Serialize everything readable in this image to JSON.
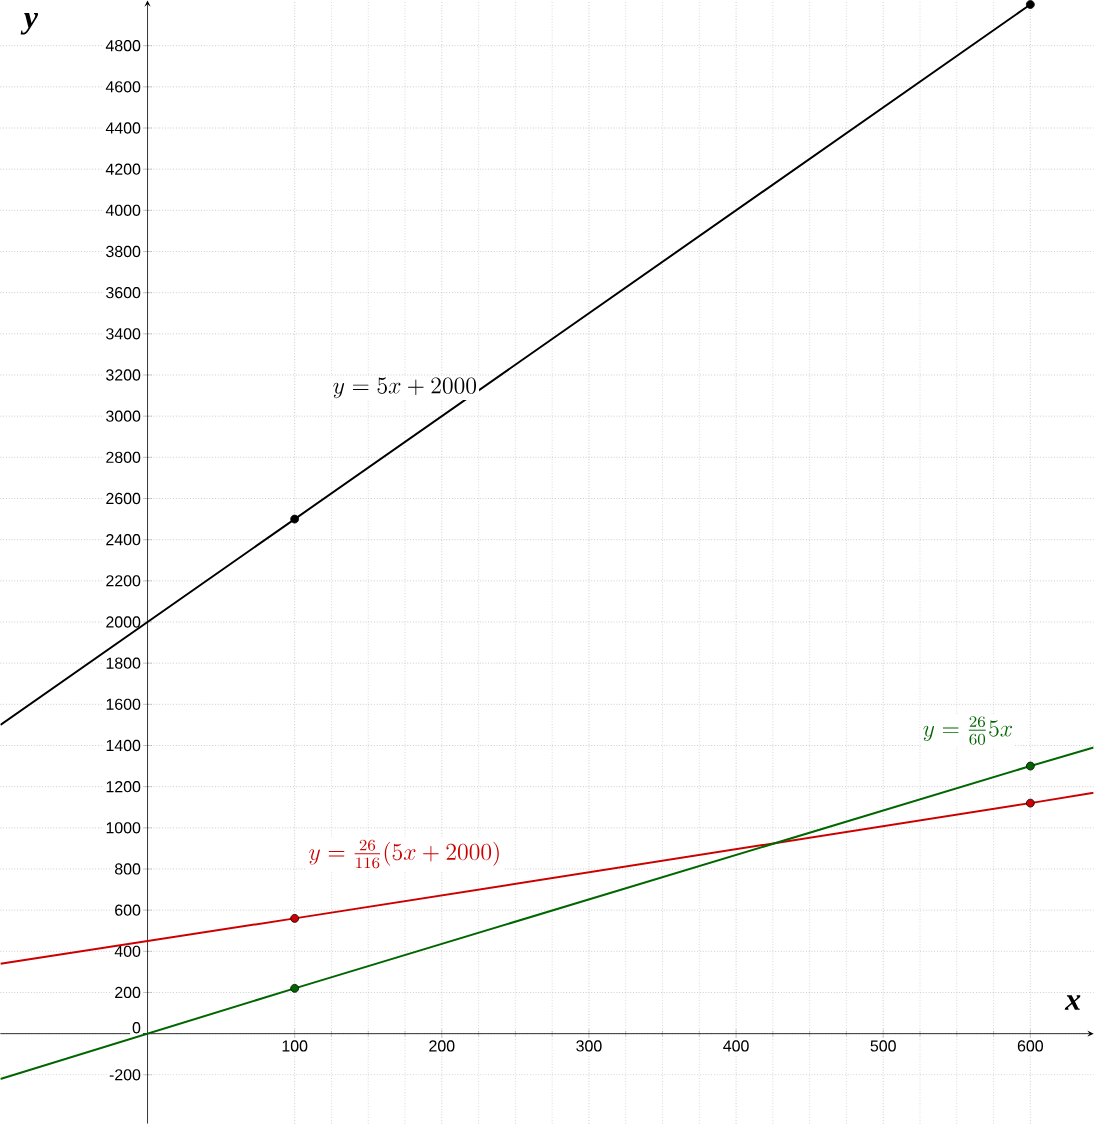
{
  "chart_data": {
    "type": "line",
    "xlabel": "x",
    "ylabel": "y",
    "xlim": [
      -100,
      643
    ],
    "ylim": [
      -437,
      5020
    ],
    "xticks": [
      100,
      200,
      300,
      400,
      500,
      600
    ],
    "yticks": [
      -200,
      0,
      200,
      400,
      600,
      800,
      1000,
      1200,
      1400,
      1600,
      1800,
      2000,
      2200,
      2400,
      2600,
      2800,
      3000,
      3200,
      3400,
      3600,
      3800,
      4000,
      4200,
      4400,
      4600,
      4800
    ],
    "grid": true,
    "line_style": "solid",
    "series": [
      {
        "color": "#000000",
        "x": [
          -100,
          100,
          600
        ],
        "values": [
          1500,
          2500,
          5000
        ]
      },
      {
        "color": "#cc0000",
        "x": [
          -100,
          100,
          600,
          643
        ],
        "values": [
          340,
          560,
          1120,
          1170
        ]
      },
      {
        "color": "#006600",
        "x": [
          -100,
          100,
          600,
          643
        ],
        "values": [
          -220,
          220,
          1300,
          1390
        ]
      },
      {
        "type": "scatter",
        "marker": "circle",
        "color": "#000000",
        "x": [
          100,
          600
        ],
        "values": [
          2500,
          5000
        ]
      },
      {
        "type": "scatter",
        "marker": "circle",
        "color": "#cc0000",
        "x": [
          100,
          600
        ],
        "values": [
          560,
          1120
        ]
      },
      {
        "type": "scatter",
        "marker": "circle",
        "color": "#006600",
        "x": [
          100,
          600
        ],
        "values": [
          220,
          1300
        ]
      }
    ],
    "annotations": [
      "y=5x+2000",
      "y=\\frac{26}{116}(5x+2000)",
      "y=\\frac{26}{60}5x"
    ]
  }
}
